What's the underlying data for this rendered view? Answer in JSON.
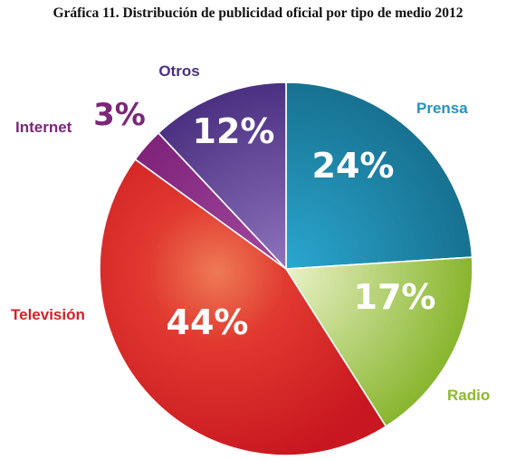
{
  "chart_data": {
    "type": "pie",
    "title": "Gráfica 11. Distribución de publicidad oficial por tipo de medio 2012",
    "slices": [
      {
        "label": "Prensa",
        "value": 24,
        "display": "24%",
        "color": "#1d8db5",
        "label_color": "#2393b9"
      },
      {
        "label": "Radio",
        "value": 17,
        "display": "17%",
        "color": "#9cc33a",
        "label_color": "#8cb92a"
      },
      {
        "label": "Televisión",
        "value": 44,
        "display": "44%",
        "color": "#d9202a",
        "label_color": "#d42027"
      },
      {
        "label": "Internet",
        "value": 3,
        "display": "3%",
        "color": "#8a2a86",
        "label_color": "#7b2679"
      },
      {
        "label": "Otros",
        "value": 12,
        "display": "12%",
        "color": "#5c3b8e",
        "label_color": "#4b2f7e"
      }
    ]
  }
}
